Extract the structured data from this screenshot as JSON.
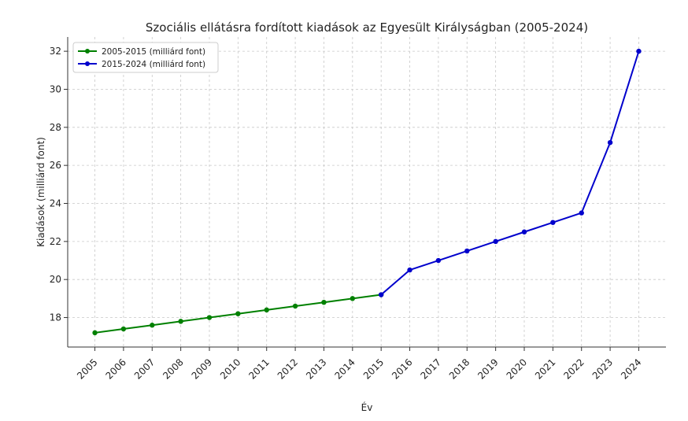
{
  "chart_data": {
    "type": "line",
    "title": "Szociális ellátásra fordított kiadások az Egyesült Királyságban (2005-2024)",
    "xlabel": "Év",
    "ylabel": "Kiadások (milliárd font)",
    "x_ticks": [
      "2005",
      "2006",
      "2007",
      "2008",
      "2009",
      "2010",
      "2011",
      "2012",
      "2013",
      "2014",
      "2015",
      "2016",
      "2017",
      "2018",
      "2019",
      "2020",
      "2021",
      "2022",
      "2023",
      "2024"
    ],
    "y_ticks": [
      18,
      20,
      22,
      24,
      26,
      28,
      30,
      32
    ],
    "ylim": [
      16.45,
      32.75
    ],
    "xlim": [
      2004.05,
      2024.95
    ],
    "grid": true,
    "legend_position": "top-left",
    "series": [
      {
        "name": "2005-2015 (milliárd font)",
        "color": "#008000",
        "x": [
          2005,
          2006,
          2007,
          2008,
          2009,
          2010,
          2011,
          2012,
          2013,
          2014,
          2015
        ],
        "y": [
          17.2,
          17.4,
          17.6,
          17.8,
          18.0,
          18.2,
          18.4,
          18.6,
          18.8,
          19.0,
          19.2
        ]
      },
      {
        "name": "2015-2024 (milliárd font)",
        "color": "#0000cc",
        "x": [
          2015,
          2016,
          2017,
          2018,
          2019,
          2020,
          2021,
          2022,
          2023,
          2024
        ],
        "y": [
          19.2,
          20.5,
          21.0,
          21.5,
          22.0,
          22.5,
          23.0,
          23.5,
          27.2,
          32.0
        ]
      }
    ]
  }
}
